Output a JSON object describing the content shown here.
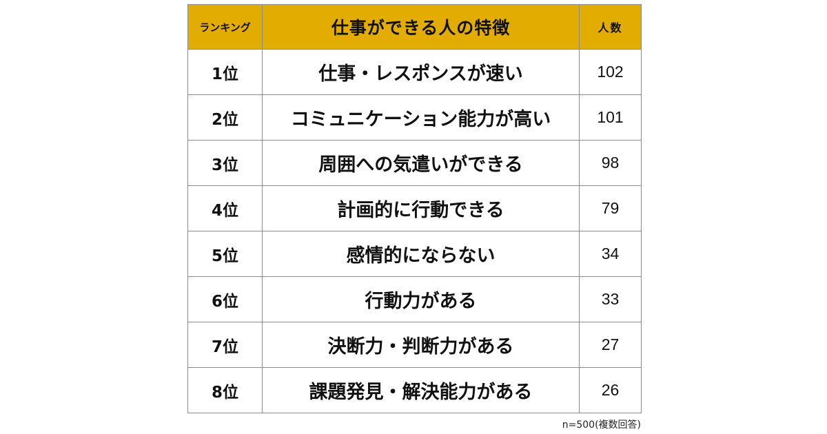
{
  "table": {
    "header": {
      "rank": "ランキング",
      "trait": "仕事ができる人の特徴",
      "count": "人数"
    },
    "footnote": "n=500(複数回答)"
  },
  "colors": {
    "header_bg": "#e2ad00",
    "header_text": "#ffffff",
    "border": "#8a8a8a"
  },
  "chart_data": {
    "type": "table",
    "title": "",
    "columns": [
      "ランキング",
      "仕事ができる人の特徴",
      "人数"
    ],
    "rows": [
      {
        "rank": "1位",
        "trait": "仕事・レスポンスが速い",
        "count": "102"
      },
      {
        "rank": "2位",
        "trait": "コミュニケーション能力が高い",
        "count": "101"
      },
      {
        "rank": "3位",
        "trait": "周囲への気遣いができる",
        "count": "98"
      },
      {
        "rank": "4位",
        "trait": "計画的に行動できる",
        "count": "79"
      },
      {
        "rank": "5位",
        "trait": "感情的にならない",
        "count": "34"
      },
      {
        "rank": "6位",
        "trait": "行動力がある",
        "count": "33"
      },
      {
        "rank": "7位",
        "trait": "決断力・判断力がある",
        "count": "27"
      },
      {
        "rank": "8位",
        "trait": "課題発見・解決能力がある",
        "count": "26"
      }
    ]
  }
}
